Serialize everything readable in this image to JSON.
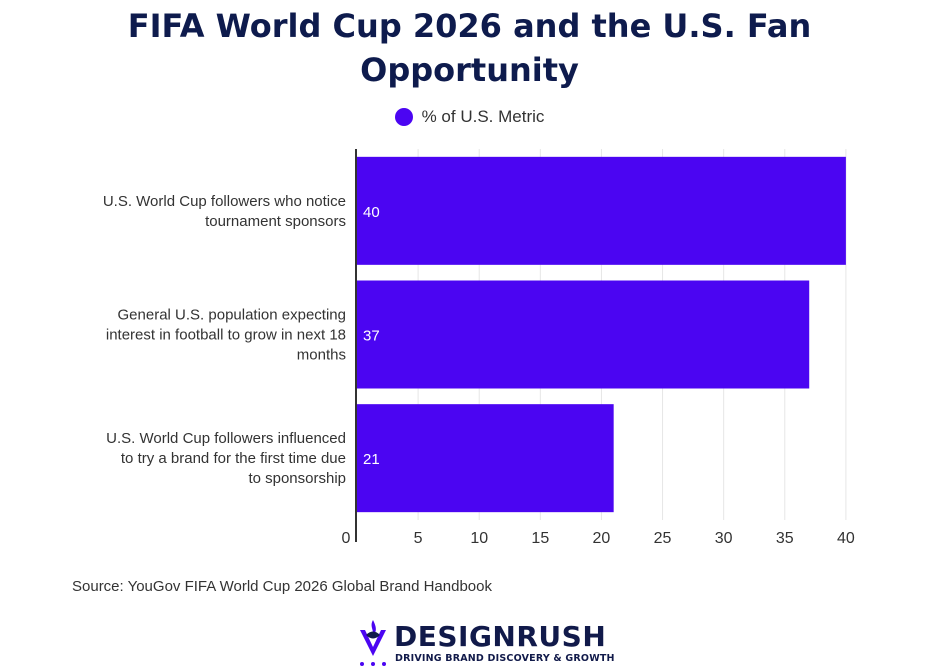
{
  "chart_data": {
    "type": "bar",
    "orientation": "horizontal",
    "title_lines": [
      "FIFA World Cup 2026 and the U.S. Fan",
      "Opportunity"
    ],
    "categories": [
      [
        "U.S. World Cup followers who notice",
        "tournament sponsors"
      ],
      [
        "General U.S. population expecting",
        "interest in football to grow in next 18",
        "months"
      ],
      [
        "U.S. World Cup followers influenced",
        "to try a brand for the first time due",
        "to sponsorship"
      ]
    ],
    "series": [
      {
        "name": "% of U.S. Metric",
        "values": [
          40,
          37,
          21
        ],
        "color": "#4b05f2"
      }
    ],
    "data_labels": [
      "40",
      "37",
      "21"
    ],
    "xlim": [
      0,
      40.5
    ],
    "x_ticks": [
      0,
      5,
      10,
      15,
      20,
      25,
      30,
      35,
      40
    ],
    "x_tick_labels": [
      "0",
      "5",
      "10",
      "15",
      "20",
      "25",
      "30",
      "35",
      "40"
    ],
    "grid": "vertical",
    "legend": "top-center"
  },
  "source": "Source: YouGov FIFA World Cup 2026 Global Brand Handbook",
  "logo": {
    "name": "DESIGNRUSH",
    "tagline": "DRIVING BRAND DISCOVERY & GROWTH"
  }
}
